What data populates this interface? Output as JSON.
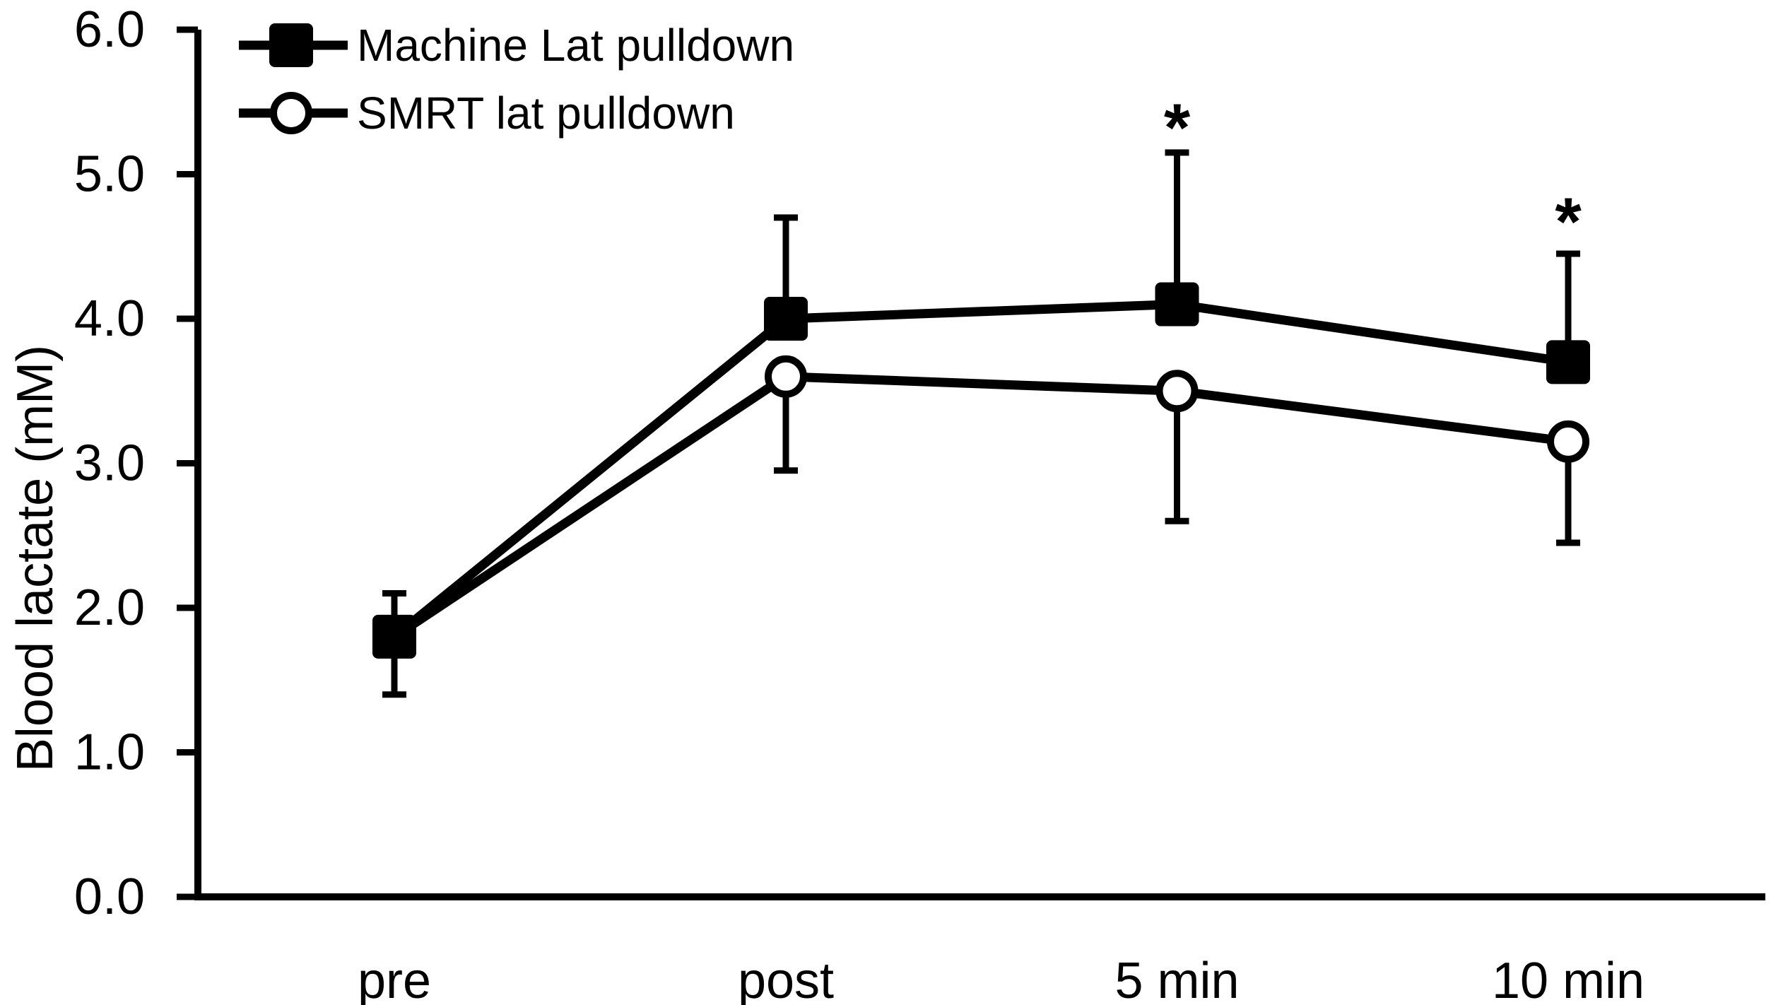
{
  "figure": {
    "background_color": "#ffffff",
    "foreground_color": "#000000",
    "legend": [
      {
        "label": "Machine Lat pulldown",
        "marker": "filled-square"
      },
      {
        "label": "SMRT lat pulldown",
        "marker": "open-circle"
      }
    ]
  },
  "chart_data": {
    "type": "line",
    "title": "",
    "xlabel": "",
    "ylabel": "Blood lactate (mM)",
    "categories": [
      "pre",
      "post",
      "5 min",
      "10 min"
    ],
    "y_ticks": [
      "0.0",
      "1.0",
      "2.0",
      "3.0",
      "4.0",
      "5.0",
      "6.0"
    ],
    "ylim": [
      0,
      6
    ],
    "grid": false,
    "legend_position": "top-left",
    "series": [
      {
        "name": "Machine Lat pulldown",
        "marker": "filled-square",
        "values": [
          1.8,
          4.0,
          4.1,
          3.7
        ],
        "error_up": [
          0.3,
          0.7,
          1.05,
          0.75
        ],
        "error_down": [
          0,
          0,
          0,
          0
        ]
      },
      {
        "name": "SMRT lat pulldown",
        "marker": "open-circle",
        "values": [
          1.8,
          3.6,
          3.5,
          3.15
        ],
        "error_up": [
          0,
          0,
          0,
          0
        ],
        "error_down": [
          0.4,
          0.65,
          0.9,
          0.7
        ]
      }
    ],
    "annotations": [
      {
        "text": "*",
        "category": "5 min",
        "at_value": 5.4
      },
      {
        "text": "*",
        "category": "10 min",
        "at_value": 4.75
      }
    ]
  }
}
